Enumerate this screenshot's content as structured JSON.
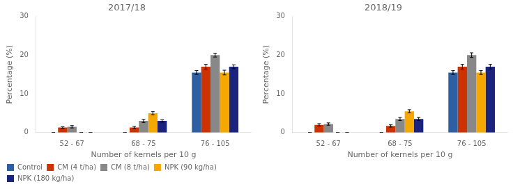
{
  "chart_data": [
    {
      "type": "bar",
      "title": "2017/18",
      "xlabel": "Number of kernels per 10 g",
      "ylabel": "Percentage (%)",
      "categories": [
        "52 - 67",
        "68 - 75",
        "76 - 105"
      ],
      "series": [
        {
          "name": "Control",
          "color": "#2e5fa3",
          "values": [
            0.0,
            0.0,
            15.5
          ],
          "errors": [
            0.0,
            0.0,
            0.5
          ]
        },
        {
          "name": "CM (4 t/ha)",
          "color": "#cc3300",
          "values": [
            1.3,
            1.3,
            17.0
          ],
          "errors": [
            0.2,
            0.3,
            0.6
          ]
        },
        {
          "name": "CM (8 t/ha)",
          "color": "#888888",
          "values": [
            1.5,
            3.0,
            20.0
          ],
          "errors": [
            0.3,
            0.4,
            0.5
          ]
        },
        {
          "name": "NPK (90 kg/ha)",
          "color": "#f5a800",
          "values": [
            0.0,
            5.0,
            15.5
          ],
          "errors": [
            0.0,
            0.4,
            0.6
          ]
        },
        {
          "name": "NPK (180 kg/ha)",
          "color": "#1a237e",
          "values": [
            0.0,
            3.0,
            17.0
          ],
          "errors": [
            0.0,
            0.3,
            0.5
          ]
        }
      ],
      "ylim": [
        0,
        30
      ],
      "yticks": [
        0,
        10,
        20,
        30
      ],
      "grid": false,
      "legend": "bottom"
    },
    {
      "type": "bar",
      "title": "2018/19",
      "xlabel": "Number of kernels per 10 g",
      "ylabel": "Percentage (%)",
      "categories": [
        "52 - 67",
        "68 - 75",
        "76 - 105"
      ],
      "series": [
        {
          "name": "Control",
          "color": "#2e5fa3",
          "values": [
            0.0,
            0.0,
            15.5
          ],
          "errors": [
            0.0,
            0.0,
            0.5
          ]
        },
        {
          "name": "CM (4 t/ha)",
          "color": "#cc3300",
          "values": [
            2.0,
            1.7,
            17.0
          ],
          "errors": [
            0.3,
            0.3,
            0.6
          ]
        },
        {
          "name": "CM (8 t/ha)",
          "color": "#888888",
          "values": [
            2.2,
            3.5,
            20.0
          ],
          "errors": [
            0.3,
            0.4,
            0.6
          ]
        },
        {
          "name": "NPK (90 kg/ha)",
          "color": "#f5a800",
          "values": [
            0.0,
            5.5,
            15.5
          ],
          "errors": [
            0.0,
            0.4,
            0.5
          ]
        },
        {
          "name": "NPK (180 kg/ha)",
          "color": "#1a237e",
          "values": [
            0.0,
            3.5,
            17.0
          ],
          "errors": [
            0.0,
            0.4,
            0.6
          ]
        }
      ],
      "ylim": [
        0,
        30
      ],
      "yticks": [
        0,
        10,
        20,
        30
      ],
      "grid": false
    }
  ]
}
